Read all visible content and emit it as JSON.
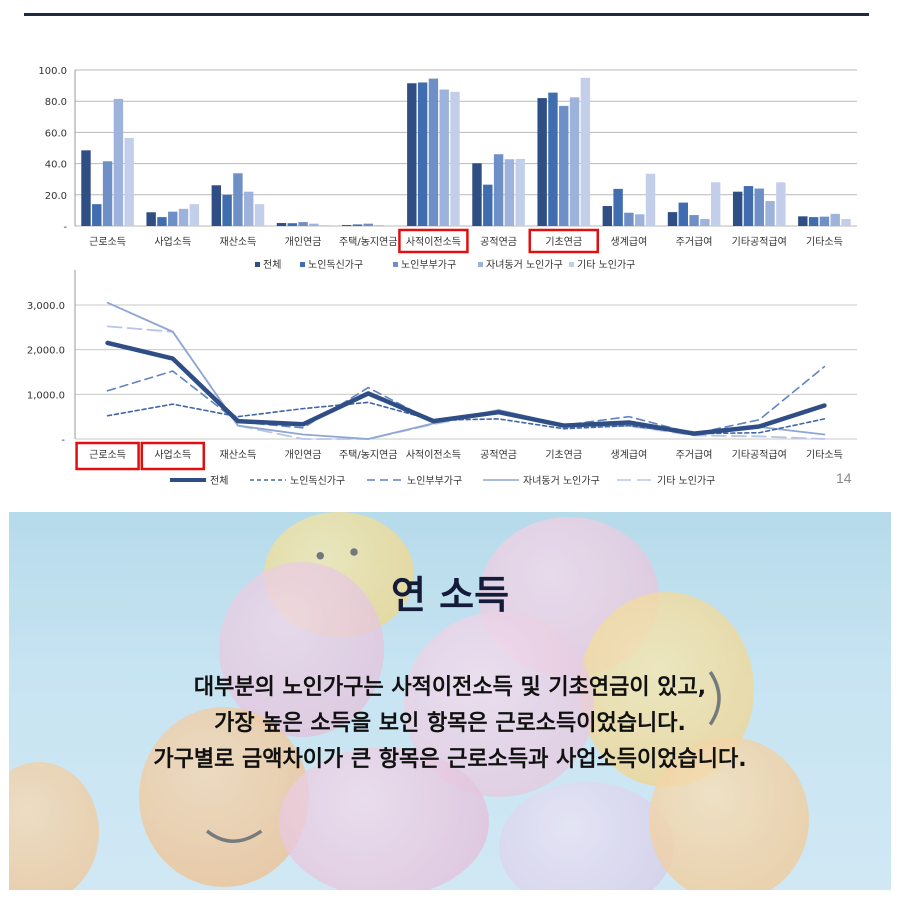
{
  "colors": {
    "s1": "#2e4e84",
    "s2": "#3f6db0",
    "s3": "#6e90c7",
    "s4": "#9eb3dc",
    "s5": "#c3cfea",
    "highlight": "#e01010"
  },
  "chart_data": [
    {
      "type": "bar",
      "categories": [
        "근로소득",
        "사업소득",
        "재산소득",
        "개인연금",
        "주택/농지연금",
        "사적이전소득",
        "공적연금",
        "기초연금",
        "생계급여",
        "주거급여",
        "기타공적급여",
        "기타소득"
      ],
      "highlighted_categories": [
        "사적이전소득",
        "기초연금"
      ],
      "y_ticks": [
        "-",
        "20.0",
        "40.0",
        "60.0",
        "80.0",
        "100.0"
      ],
      "ylim": [
        0,
        100
      ],
      "grid": true,
      "legend_position": "bottom",
      "series": [
        {
          "name": "전체",
          "values": [
            48.5,
            8.8,
            26.1,
            1.9,
            0.6,
            91.5,
            40.2,
            82.0,
            12.8,
            8.9,
            22.0,
            6.2
          ]
        },
        {
          "name": "노인독신가구",
          "values": [
            14.0,
            5.7,
            20.0,
            1.8,
            1.0,
            92.0,
            26.5,
            85.5,
            23.8,
            15.0,
            25.6,
            5.7
          ]
        },
        {
          "name": "노인부부가구",
          "values": [
            41.5,
            9.2,
            33.8,
            2.5,
            1.5,
            94.5,
            46.0,
            77.0,
            8.5,
            7.0,
            24.0,
            6.0
          ]
        },
        {
          "name": "자녀동거 노인가구",
          "values": [
            81.5,
            11.0,
            22.0,
            1.5,
            0.5,
            87.5,
            42.8,
            82.5,
            7.5,
            4.5,
            16.0,
            7.8
          ]
        },
        {
          "name": "기타 노인가구",
          "values": [
            56.5,
            14.0,
            14.0,
            0.6,
            0.2,
            86.0,
            43.0,
            95.0,
            33.5,
            28.0,
            28.0,
            4.5
          ]
        }
      ]
    },
    {
      "type": "line",
      "categories": [
        "근로소득",
        "사업소득",
        "재산소득",
        "개인연금",
        "주택/농지연금",
        "사적이전소득",
        "공적연금",
        "기초연금",
        "생계급여",
        "주거급여",
        "기타공적급여",
        "기타소득"
      ],
      "highlighted_categories": [
        "근로소득",
        "사업소득"
      ],
      "y_ticks": [
        "-",
        "1,000.0",
        "2,000.0",
        "3,000.0"
      ],
      "ylim": [
        0,
        3200
      ],
      "grid": true,
      "legend_position": "bottom",
      "series": [
        {
          "name": "전체",
          "values": [
            2150,
            1800,
            400,
            330,
            1020,
            400,
            600,
            300,
            370,
            120,
            280,
            750
          ]
        },
        {
          "name": "노인독신가구",
          "values": [
            520,
            780,
            500,
            680,
            820,
            420,
            450,
            230,
            300,
            120,
            140,
            450
          ]
        },
        {
          "name": "노인부부가구",
          "values": [
            1080,
            1520,
            380,
            250,
            1150,
            390,
            580,
            310,
            500,
            120,
            430,
            1620
          ]
        },
        {
          "name": "자녀동거 노인가구",
          "values": [
            3050,
            2400,
            300,
            100,
            0,
            350,
            650,
            320,
            300,
            110,
            270,
            100
          ]
        },
        {
          "name": "기타 노인가구",
          "values": [
            2520,
            2400,
            300,
            0,
            0,
            330,
            600,
            280,
            290,
            80,
            60,
            0
          ]
        }
      ]
    }
  ],
  "page_number": "14",
  "banner": {
    "title": "연 소득",
    "lines": [
      "대부분의 노인가구는 사적이전소득 및 기초연금이 있고,",
      "가장 높은 소득을 보인 항목은 근로소득이었습니다.",
      "가구별로 금액차이가 큰 항목은 근로소득과 사업소득이었습니다."
    ]
  }
}
